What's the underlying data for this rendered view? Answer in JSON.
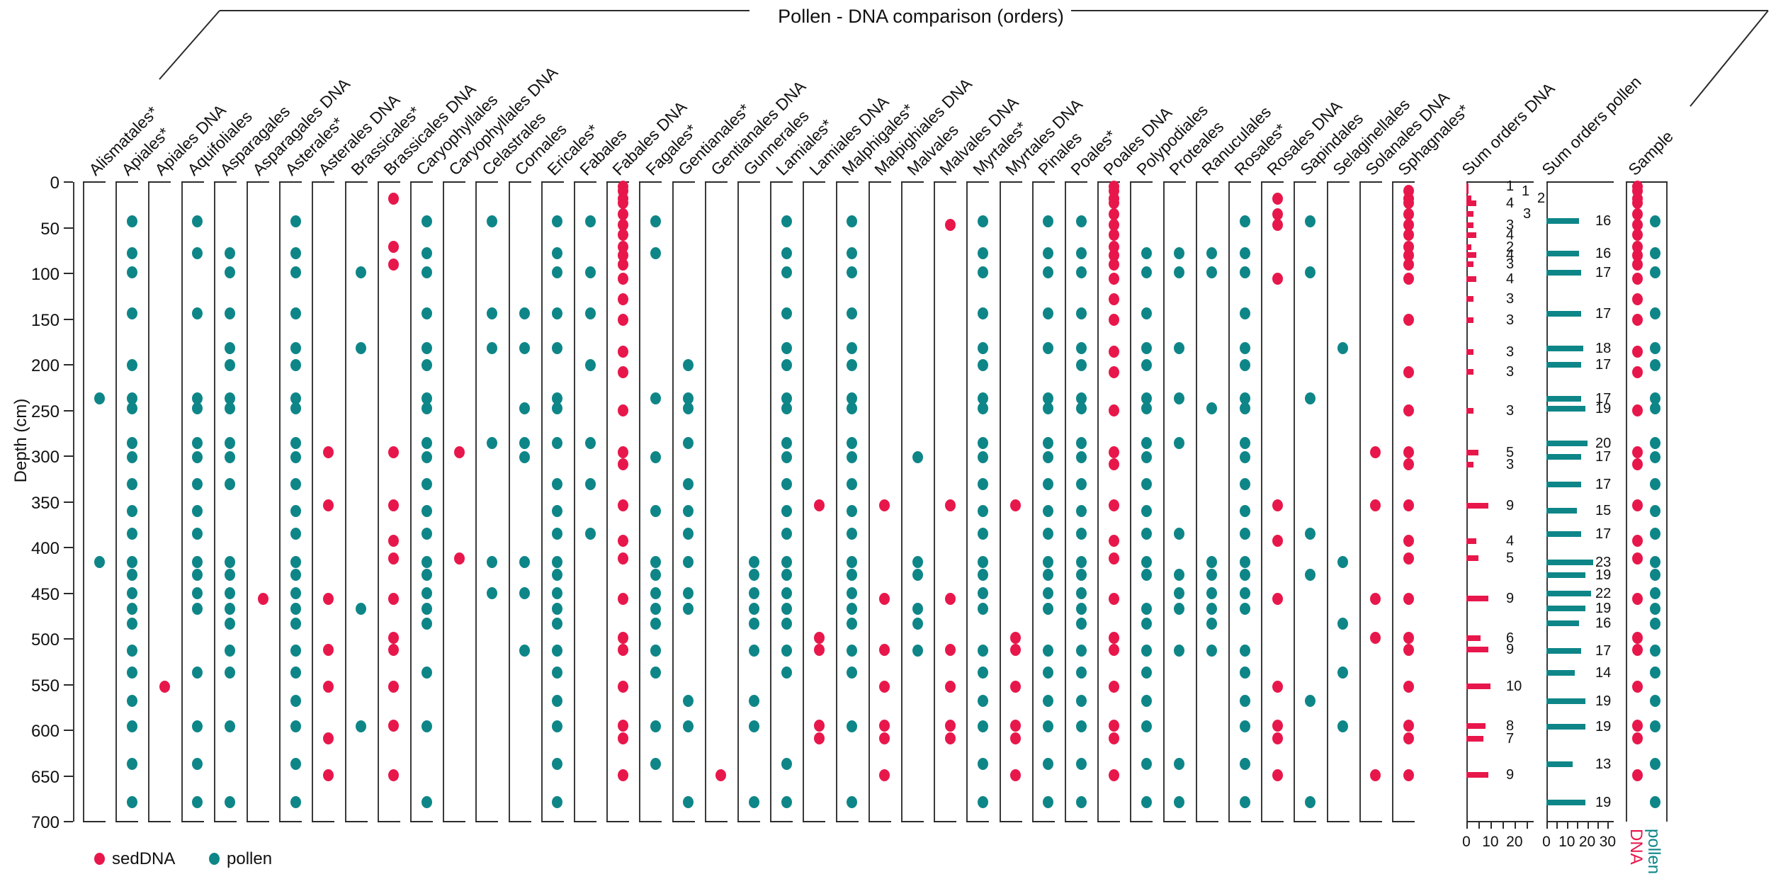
{
  "title": "Pollen - DNA comparison (orders)",
  "legend": {
    "seddna_label": "sedDNA",
    "pollen_label": "pollen"
  },
  "colors": {
    "dna": "#E8174B",
    "pollen": "#0E8688"
  },
  "y_axis": {
    "label": "Depth (cm)",
    "min": 0,
    "max": 700,
    "tick_labels": [
      0,
      50,
      100,
      150,
      200,
      250,
      300,
      350,
      400,
      450,
      500,
      550,
      600,
      650,
      700
    ]
  },
  "chart_data": {
    "type": "scatter",
    "pollen_depths": [
      43,
      78,
      99,
      144,
      182,
      200,
      237,
      248,
      286,
      301,
      331,
      360,
      385,
      416,
      430,
      450,
      467,
      483,
      513,
      537,
      568,
      596,
      637,
      679
    ],
    "dna_depths": [
      5,
      10,
      18,
      23,
      35,
      47,
      58,
      71,
      80,
      90,
      106,
      128,
      151,
      186,
      208,
      250,
      296,
      309,
      354,
      393,
      412,
      456,
      499,
      512,
      552,
      595,
      609,
      649
    ],
    "columns": [
      {
        "label": "Alismatales*",
        "kind": "pollen",
        "depths": [
          237,
          416
        ]
      },
      {
        "label": "Apiales*",
        "kind": "pollen",
        "depths": [
          43,
          78,
          99,
          144,
          200,
          237,
          248,
          286,
          301,
          331,
          360,
          385,
          416,
          430,
          450,
          467,
          483,
          513,
          537,
          568,
          596,
          637,
          679
        ]
      },
      {
        "label": "Apiales DNA",
        "kind": "dna",
        "depths": [
          552
        ]
      },
      {
        "label": "Aquifoliales",
        "kind": "pollen",
        "depths": [
          43,
          78,
          144,
          237,
          248,
          286,
          301,
          331,
          360,
          385,
          416,
          430,
          450,
          467,
          537,
          596,
          637,
          679
        ]
      },
      {
        "label": "Asparagales",
        "kind": "pollen",
        "depths": [
          78,
          99,
          144,
          182,
          200,
          237,
          248,
          286,
          301,
          331,
          416,
          430,
          450,
          467,
          483,
          513,
          537,
          596,
          679
        ]
      },
      {
        "label": "Asparagales DNA",
        "kind": "dna",
        "depths": [
          456
        ]
      },
      {
        "label": "Asterales*",
        "kind": "pollen",
        "depths": [
          43,
          78,
          99,
          144,
          182,
          200,
          237,
          248,
          286,
          301,
          331,
          360,
          385,
          416,
          430,
          450,
          467,
          483,
          513,
          537,
          568,
          596,
          637,
          679
        ]
      },
      {
        "label": "Asterales DNA",
        "kind": "dna",
        "depths": [
          296,
          354,
          456,
          512,
          552,
          609,
          649
        ]
      },
      {
        "label": "Brassicales*",
        "kind": "pollen",
        "depths": [
          99,
          182,
          467,
          596
        ]
      },
      {
        "label": "Brassicales DNA",
        "kind": "dna",
        "depths": [
          18,
          71,
          90,
          296,
          354,
          393,
          412,
          456,
          499,
          512,
          552,
          595,
          649
        ]
      },
      {
        "label": "Caryophyllales",
        "kind": "pollen",
        "depths": [
          43,
          78,
          99,
          144,
          182,
          200,
          237,
          248,
          286,
          301,
          331,
          360,
          385,
          416,
          430,
          450,
          467,
          483,
          537,
          596,
          679
        ]
      },
      {
        "label": "Caryophyllales DNA",
        "kind": "dna",
        "depths": [
          296,
          412
        ]
      },
      {
        "label": "Celastrales",
        "kind": "pollen",
        "depths": [
          43,
          144,
          182,
          286,
          416,
          450
        ]
      },
      {
        "label": "Cornales",
        "kind": "pollen",
        "depths": [
          144,
          182,
          248,
          286,
          301,
          416,
          450,
          513
        ]
      },
      {
        "label": "Ericales*",
        "kind": "pollen",
        "depths": [
          43,
          78,
          99,
          144,
          182,
          237,
          248,
          286,
          331,
          360,
          385,
          416,
          430,
          450,
          467,
          483,
          513,
          537,
          568,
          596,
          637,
          679
        ]
      },
      {
        "label": "Fabales",
        "kind": "pollen",
        "depths": [
          43,
          99,
          144,
          200,
          286,
          331,
          385
        ]
      },
      {
        "label": "Fabales DNA",
        "kind": "dna",
        "depths": [
          5,
          10,
          18,
          23,
          35,
          47,
          58,
          71,
          80,
          90,
          106,
          128,
          151,
          186,
          208,
          250,
          296,
          309,
          354,
          393,
          412,
          456,
          499,
          512,
          552,
          595,
          609,
          649
        ]
      },
      {
        "label": "Fagales*",
        "kind": "pollen",
        "depths": [
          43,
          78,
          237,
          301,
          360,
          416,
          430,
          450,
          467,
          483,
          513,
          537,
          596,
          637
        ]
      },
      {
        "label": "Gentianales*",
        "kind": "pollen",
        "depths": [
          200,
          237,
          248,
          286,
          331,
          360,
          385,
          416,
          450,
          467,
          568,
          596,
          679
        ]
      },
      {
        "label": "Gentianales DNA",
        "kind": "dna",
        "depths": [
          649
        ]
      },
      {
        "label": "Gunnerales",
        "kind": "pollen",
        "depths": [
          416,
          430,
          450,
          467,
          483,
          513,
          568,
          596,
          679
        ]
      },
      {
        "label": "Lamiales*",
        "kind": "pollen",
        "depths": [
          43,
          78,
          99,
          144,
          182,
          200,
          237,
          248,
          286,
          301,
          331,
          360,
          385,
          416,
          430,
          450,
          467,
          483,
          513,
          537,
          637,
          679
        ]
      },
      {
        "label": "Lamiales DNA",
        "kind": "dna",
        "depths": [
          354,
          499,
          512,
          595,
          609
        ]
      },
      {
        "label": "Malphigales*",
        "kind": "pollen",
        "depths": [
          43,
          78,
          99,
          144,
          182,
          200,
          237,
          248,
          286,
          301,
          331,
          360,
          385,
          416,
          430,
          450,
          467,
          483,
          513,
          537,
          596,
          679
        ]
      },
      {
        "label": "Malpighiales DNA",
        "kind": "dna",
        "depths": [
          354,
          456,
          512,
          552,
          595,
          609,
          649
        ]
      },
      {
        "label": "Malvales",
        "kind": "pollen",
        "depths": [
          301,
          416,
          430,
          467,
          483,
          513
        ]
      },
      {
        "label": "Malvales DNA",
        "kind": "dna",
        "depths": [
          47,
          354,
          456,
          512,
          552,
          595,
          609
        ]
      },
      {
        "label": "Myrtales*",
        "kind": "pollen",
        "depths": [
          43,
          78,
          99,
          144,
          182,
          200,
          237,
          248,
          286,
          301,
          331,
          360,
          385,
          416,
          430,
          450,
          467,
          513,
          537,
          568,
          596,
          637,
          679
        ]
      },
      {
        "label": "Myrtales DNA",
        "kind": "dna",
        "depths": [
          354,
          499,
          512,
          552,
          595,
          609,
          649
        ]
      },
      {
        "label": "Pinales",
        "kind": "pollen",
        "depths": [
          43,
          78,
          99,
          144,
          182,
          237,
          248,
          286,
          301,
          331,
          360,
          385,
          416,
          430,
          450,
          467,
          513,
          537,
          568,
          596,
          637,
          679
        ]
      },
      {
        "label": "Poales*",
        "kind": "pollen",
        "depths": [
          43,
          78,
          99,
          144,
          182,
          200,
          237,
          248,
          286,
          301,
          331,
          360,
          385,
          416,
          430,
          450,
          467,
          483,
          513,
          537,
          568,
          596,
          637,
          679
        ]
      },
      {
        "label": "Poales DNA",
        "kind": "dna",
        "depths": [
          5,
          10,
          18,
          23,
          35,
          47,
          58,
          71,
          80,
          90,
          106,
          128,
          151,
          186,
          208,
          250,
          296,
          309,
          354,
          393,
          412,
          456,
          499,
          512,
          552,
          595,
          609,
          649
        ]
      },
      {
        "label": "Polypodiales",
        "kind": "pollen",
        "depths": [
          78,
          99,
          144,
          182,
          200,
          237,
          248,
          286,
          301,
          331,
          360,
          385,
          416,
          430,
          467,
          483,
          513,
          537,
          568,
          596,
          637,
          679
        ]
      },
      {
        "label": "Proteales",
        "kind": "pollen",
        "depths": [
          78,
          99,
          182,
          237,
          286,
          385,
          430,
          450,
          467,
          513,
          637,
          679
        ]
      },
      {
        "label": "Ranuculales",
        "kind": "pollen",
        "depths": [
          78,
          99,
          248,
          416,
          430,
          450,
          467,
          483,
          513
        ]
      },
      {
        "label": "Rosales*",
        "kind": "pollen",
        "depths": [
          43,
          78,
          99,
          144,
          182,
          200,
          237,
          248,
          286,
          301,
          331,
          360,
          385,
          416,
          430,
          450,
          467,
          513,
          537,
          568,
          596,
          637,
          679
        ]
      },
      {
        "label": "Rosales DNA",
        "kind": "dna",
        "depths": [
          18,
          35,
          47,
          106,
          354,
          393,
          456,
          552,
          595,
          609,
          649
        ]
      },
      {
        "label": "Sapindales",
        "kind": "pollen",
        "depths": [
          43,
          99,
          237,
          385,
          430,
          568,
          679
        ]
      },
      {
        "label": "Selaginellales",
        "kind": "pollen",
        "depths": [
          182,
          416,
          483,
          537,
          596
        ]
      },
      {
        "label": "Solanales DNA",
        "kind": "dna",
        "depths": [
          296,
          354,
          456,
          499,
          649
        ]
      },
      {
        "label": "Sphagnales*",
        "kind": "dna",
        "depths": [
          10,
          18,
          23,
          35,
          47,
          58,
          71,
          80,
          90,
          106,
          151,
          208,
          250,
          296,
          309,
          354,
          393,
          412,
          456,
          499,
          512,
          552,
          595,
          609,
          649
        ]
      }
    ],
    "sum_orders_dna": {
      "label": "Sum orders DNA",
      "axis_ticks": [
        0,
        10,
        20
      ],
      "axis_max": 28,
      "values": [
        {
          "depth": 5,
          "value": 1,
          "label_dx": 0
        },
        {
          "depth": 10,
          "value": 1,
          "label_dx": 22
        },
        {
          "depth": 18,
          "value": 2,
          "label_dx": 44
        },
        {
          "depth": 23,
          "value": 4,
          "label_dx": 0
        },
        {
          "depth": 35,
          "value": 3,
          "label_dx": 24
        },
        {
          "depth": 47,
          "value": 3,
          "label_dx": 0
        },
        {
          "depth": 58,
          "value": 4,
          "label_dx": 0
        },
        {
          "depth": 71,
          "value": 2,
          "label_dx": 0
        },
        {
          "depth": 80,
          "value": 4,
          "label_dx": 0
        },
        {
          "depth": 90,
          "value": 3,
          "label_dx": 0
        },
        {
          "depth": 106,
          "value": 4,
          "label_dx": 0
        },
        {
          "depth": 128,
          "value": 3,
          "label_dx": 0
        },
        {
          "depth": 151,
          "value": 3,
          "label_dx": 0
        },
        {
          "depth": 186,
          "value": 3,
          "label_dx": 0
        },
        {
          "depth": 208,
          "value": 3,
          "label_dx": 0
        },
        {
          "depth": 250,
          "value": 3,
          "label_dx": 0
        },
        {
          "depth": 296,
          "value": 5,
          "label_dx": 0
        },
        {
          "depth": 309,
          "value": 3,
          "label_dx": 0
        },
        {
          "depth": 354,
          "value": 9,
          "label_dx": 0
        },
        {
          "depth": 393,
          "value": 4,
          "label_dx": 0
        },
        {
          "depth": 412,
          "value": 5,
          "label_dx": 0
        },
        {
          "depth": 456,
          "value": 9,
          "label_dx": 0
        },
        {
          "depth": 499,
          "value": 6,
          "label_dx": 0
        },
        {
          "depth": 512,
          "value": 9,
          "label_dx": 0
        },
        {
          "depth": 552,
          "value": 10,
          "label_dx": 0
        },
        {
          "depth": 595,
          "value": 8,
          "label_dx": 0
        },
        {
          "depth": 609,
          "value": 7,
          "label_dx": 0
        },
        {
          "depth": 649,
          "value": 9,
          "label_dx": 0
        }
      ]
    },
    "sum_orders_pollen": {
      "label": "Sum orders pollen",
      "axis_ticks": [
        0,
        10,
        20,
        30
      ],
      "axis_max": 33,
      "values": [
        {
          "depth": 43,
          "value": 16
        },
        {
          "depth": 78,
          "value": 16
        },
        {
          "depth": 99,
          "value": 17
        },
        {
          "depth": 144,
          "value": 17
        },
        {
          "depth": 182,
          "value": 18
        },
        {
          "depth": 200,
          "value": 17
        },
        {
          "depth": 237,
          "value": 17
        },
        {
          "depth": 248,
          "value": 19
        },
        {
          "depth": 286,
          "value": 20
        },
        {
          "depth": 301,
          "value": 17
        },
        {
          "depth": 331,
          "value": 17
        },
        {
          "depth": 360,
          "value": 15
        },
        {
          "depth": 385,
          "value": 17
        },
        {
          "depth": 416,
          "value": 23
        },
        {
          "depth": 430,
          "value": 19
        },
        {
          "depth": 450,
          "value": 22
        },
        {
          "depth": 467,
          "value": 19
        },
        {
          "depth": 483,
          "value": 16
        },
        {
          "depth": 513,
          "value": 17
        },
        {
          "depth": 537,
          "value": 14
        },
        {
          "depth": 568,
          "value": 19
        },
        {
          "depth": 596,
          "value": 19
        },
        {
          "depth": 637,
          "value": 13
        },
        {
          "depth": 679,
          "value": 19
        }
      ]
    },
    "sample": {
      "label": "Sample",
      "dna_axis_label": "DNA",
      "pollen_axis_label": "pollen"
    }
  }
}
